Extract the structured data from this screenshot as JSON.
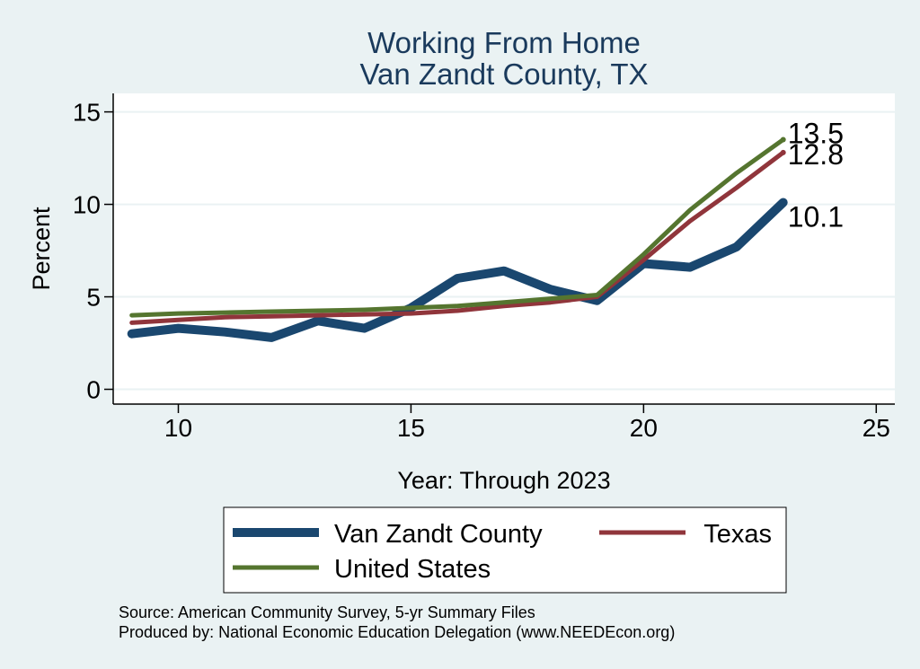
{
  "chart_data": {
    "type": "line",
    "title": "Working From Home",
    "subtitle": "Van Zandt County, TX",
    "xlabel": "Year: Through 2023",
    "ylabel": "Percent",
    "xlim": [
      8.6,
      25.4
    ],
    "ylim": [
      -0.8,
      16
    ],
    "xticks": [
      10,
      15,
      20,
      25
    ],
    "yticks": [
      0,
      5,
      10,
      15
    ],
    "grid": true,
    "legend_position": "bottom",
    "series": [
      {
        "name": "Van Zandt County",
        "color": "#1a476f",
        "x": [
          9,
          10,
          11,
          12,
          13,
          14,
          15,
          16,
          17,
          18,
          19,
          20,
          21,
          22,
          23
        ],
        "values": [
          3.0,
          3.3,
          3.1,
          2.8,
          3.7,
          3.3,
          4.4,
          6.0,
          6.4,
          5.4,
          4.8,
          6.8,
          6.6,
          7.7,
          10.1
        ],
        "end_label": "10.1"
      },
      {
        "name": "Texas",
        "color": "#90353b",
        "x": [
          9,
          10,
          11,
          12,
          13,
          14,
          15,
          16,
          17,
          18,
          19,
          20,
          21,
          22,
          23
        ],
        "values": [
          3.6,
          3.75,
          3.9,
          3.95,
          4.0,
          4.05,
          4.1,
          4.25,
          4.5,
          4.7,
          5.0,
          7.0,
          9.1,
          10.9,
          12.8
        ],
        "end_label": "12.8"
      },
      {
        "name": "United States",
        "color": "#55752f",
        "x": [
          9,
          10,
          11,
          12,
          13,
          14,
          15,
          16,
          17,
          18,
          19,
          20,
          21,
          22,
          23
        ],
        "values": [
          4.0,
          4.1,
          4.15,
          4.2,
          4.25,
          4.3,
          4.4,
          4.5,
          4.7,
          4.9,
          5.1,
          7.3,
          9.7,
          11.7,
          13.5
        ],
        "end_label": "13.5"
      }
    ]
  },
  "source": {
    "line1": "Source: American Community Survey, 5-yr Summary Files",
    "line2": "Produced by: National Economic Education Delegation (www.NEEDEcon.org)"
  }
}
